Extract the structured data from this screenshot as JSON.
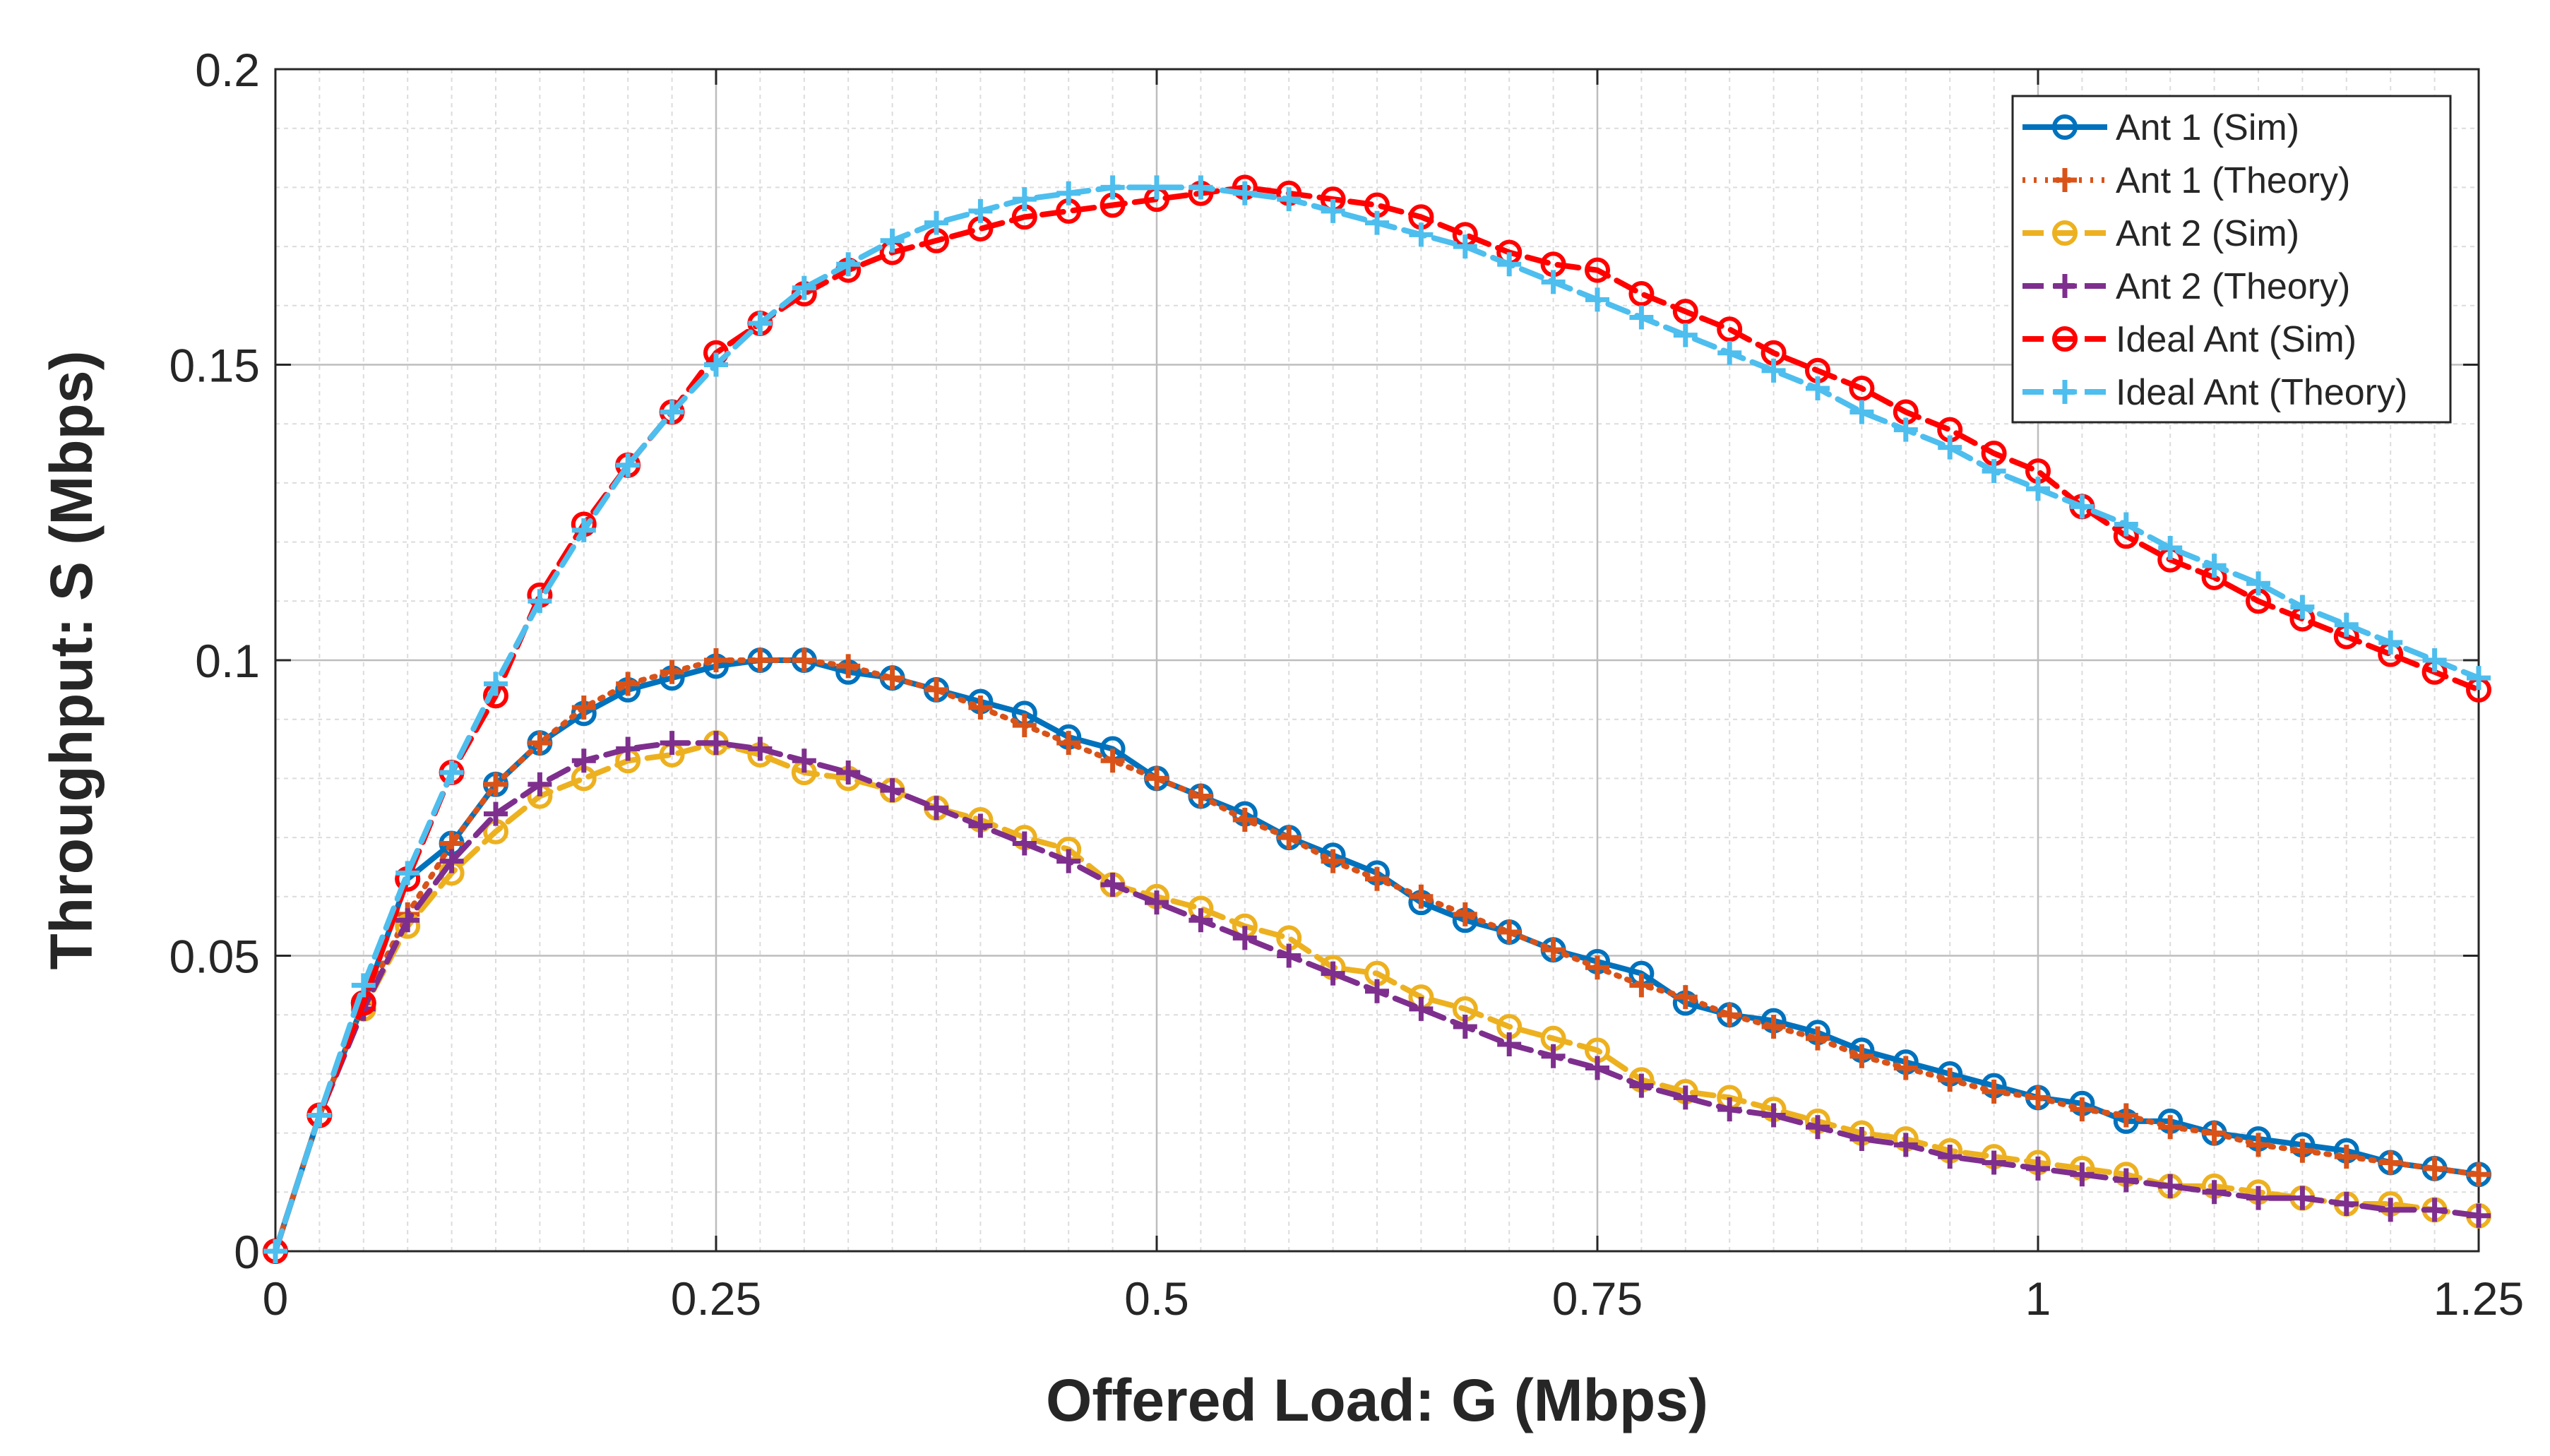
{
  "chart_data": {
    "type": "line",
    "title": "",
    "xlabel": "Offered Load: G (Mbps)",
    "ylabel": "Throughput: S (Mbps)",
    "xlim": [
      0,
      1.25
    ],
    "ylim": [
      0,
      0.2
    ],
    "xticks": [
      0,
      0.25,
      0.5,
      0.75,
      1,
      1.25
    ],
    "xtick_labels": [
      "0",
      "0.25",
      "0.5",
      "0.75",
      "1",
      "1.25"
    ],
    "yticks": [
      0,
      0.05,
      0.1,
      0.15,
      0.2
    ],
    "ytick_labels": [
      "0",
      "0.05",
      "0.1",
      "0.15",
      "0.2"
    ],
    "grid": true,
    "minor_grid": true,
    "legend_position": "top-right",
    "x": [
      0,
      0.025,
      0.05,
      0.075,
      0.1,
      0.125,
      0.15,
      0.175,
      0.2,
      0.225,
      0.25,
      0.275,
      0.3,
      0.325,
      0.35,
      0.375,
      0.4,
      0.425,
      0.45,
      0.475,
      0.5,
      0.525,
      0.55,
      0.575,
      0.6,
      0.625,
      0.65,
      0.675,
      0.7,
      0.725,
      0.75,
      0.775,
      0.8,
      0.825,
      0.85,
      0.875,
      0.9,
      0.925,
      0.95,
      0.975,
      1.0,
      1.025,
      1.05,
      1.075,
      1.1,
      1.125,
      1.15,
      1.175,
      1.2,
      1.225,
      1.25
    ],
    "series": [
      {
        "name": "Ant 1 (Sim)",
        "color": "#0072BD",
        "line": "solid",
        "marker": "circle",
        "values": [
          0,
          0.023,
          0.042,
          0.063,
          0.069,
          0.079,
          0.086,
          0.091,
          0.095,
          0.097,
          0.099,
          0.1,
          0.1,
          0.098,
          0.097,
          0.095,
          0.093,
          0.091,
          0.087,
          0.085,
          0.08,
          0.077,
          0.074,
          0.07,
          0.067,
          0.064,
          0.059,
          0.056,
          0.054,
          0.051,
          0.049,
          0.047,
          0.042,
          0.04,
          0.039,
          0.037,
          0.034,
          0.032,
          0.03,
          0.028,
          0.026,
          0.025,
          0.022,
          0.022,
          0.02,
          0.019,
          0.018,
          0.017,
          0.015,
          0.014,
          0.013
        ]
      },
      {
        "name": "Ant 1 (Theory)",
        "color": "#D95319",
        "line": "dotted",
        "marker": "plus",
        "values": [
          0,
          0.023,
          0.042,
          0.057,
          0.069,
          0.079,
          0.086,
          0.092,
          0.096,
          0.098,
          0.1,
          0.1,
          0.1,
          0.099,
          0.097,
          0.095,
          0.092,
          0.089,
          0.086,
          0.083,
          0.08,
          0.077,
          0.073,
          0.07,
          0.066,
          0.063,
          0.06,
          0.057,
          0.054,
          0.051,
          0.048,
          0.045,
          0.043,
          0.04,
          0.038,
          0.036,
          0.033,
          0.031,
          0.029,
          0.027,
          0.026,
          0.024,
          0.023,
          0.021,
          0.02,
          0.018,
          0.017,
          0.016,
          0.015,
          0.014,
          0.013
        ]
      },
      {
        "name": "Ant 2 (Sim)",
        "color": "#EDB120",
        "line": "dashed",
        "marker": "circle",
        "values": [
          0,
          0.023,
          0.041,
          0.055,
          0.064,
          0.071,
          0.077,
          0.08,
          0.083,
          0.084,
          0.086,
          0.084,
          0.081,
          0.08,
          0.078,
          0.075,
          0.073,
          0.07,
          0.068,
          0.062,
          0.06,
          0.058,
          0.055,
          0.053,
          0.048,
          0.047,
          0.043,
          0.041,
          0.038,
          0.036,
          0.034,
          0.029,
          0.027,
          0.026,
          0.024,
          0.022,
          0.02,
          0.019,
          0.017,
          0.016,
          0.015,
          0.014,
          0.013,
          0.011,
          0.011,
          0.01,
          0.009,
          0.008,
          0.008,
          0.007,
          0.006
        ]
      },
      {
        "name": "Ant 2 (Theory)",
        "color": "#7E2F8E",
        "line": "dashed",
        "marker": "plus",
        "values": [
          0,
          0.023,
          0.041,
          0.056,
          0.066,
          0.074,
          0.079,
          0.083,
          0.085,
          0.086,
          0.086,
          0.085,
          0.083,
          0.081,
          0.078,
          0.075,
          0.072,
          0.069,
          0.066,
          0.062,
          0.059,
          0.056,
          0.053,
          0.05,
          0.047,
          0.044,
          0.041,
          0.038,
          0.035,
          0.033,
          0.031,
          0.028,
          0.026,
          0.024,
          0.023,
          0.021,
          0.019,
          0.018,
          0.016,
          0.015,
          0.014,
          0.013,
          0.012,
          0.011,
          0.01,
          0.009,
          0.009,
          0.008,
          0.007,
          0.007,
          0.006
        ]
      },
      {
        "name": "Ideal Ant (Sim)",
        "color": "#FF0000",
        "line": "dashed",
        "marker": "circle",
        "values": [
          0,
          0.023,
          0.042,
          0.063,
          0.081,
          0.094,
          0.111,
          0.123,
          0.133,
          0.142,
          0.152,
          0.157,
          0.162,
          0.166,
          0.169,
          0.171,
          0.173,
          0.175,
          0.176,
          0.177,
          0.178,
          0.179,
          0.18,
          0.179,
          0.178,
          0.177,
          0.175,
          0.172,
          0.169,
          0.167,
          0.166,
          0.162,
          0.159,
          0.156,
          0.152,
          0.149,
          0.146,
          0.142,
          0.139,
          0.135,
          0.132,
          0.126,
          0.121,
          0.117,
          0.114,
          0.11,
          0.107,
          0.104,
          0.101,
          0.098,
          0.095
        ]
      },
      {
        "name": "Ideal Ant (Theory)",
        "color": "#4DBEEE",
        "line": "dashed",
        "marker": "plus",
        "values": [
          0,
          0.023,
          0.045,
          0.064,
          0.081,
          0.096,
          0.11,
          0.122,
          0.133,
          0.142,
          0.15,
          0.157,
          0.163,
          0.167,
          0.171,
          0.174,
          0.176,
          0.178,
          0.179,
          0.18,
          0.18,
          0.18,
          0.179,
          0.178,
          0.176,
          0.174,
          0.172,
          0.17,
          0.167,
          0.164,
          0.161,
          0.158,
          0.155,
          0.152,
          0.149,
          0.146,
          0.142,
          0.139,
          0.136,
          0.132,
          0.129,
          0.126,
          0.123,
          0.119,
          0.116,
          0.113,
          0.109,
          0.106,
          0.103,
          0.1,
          0.097
        ]
      }
    ]
  }
}
